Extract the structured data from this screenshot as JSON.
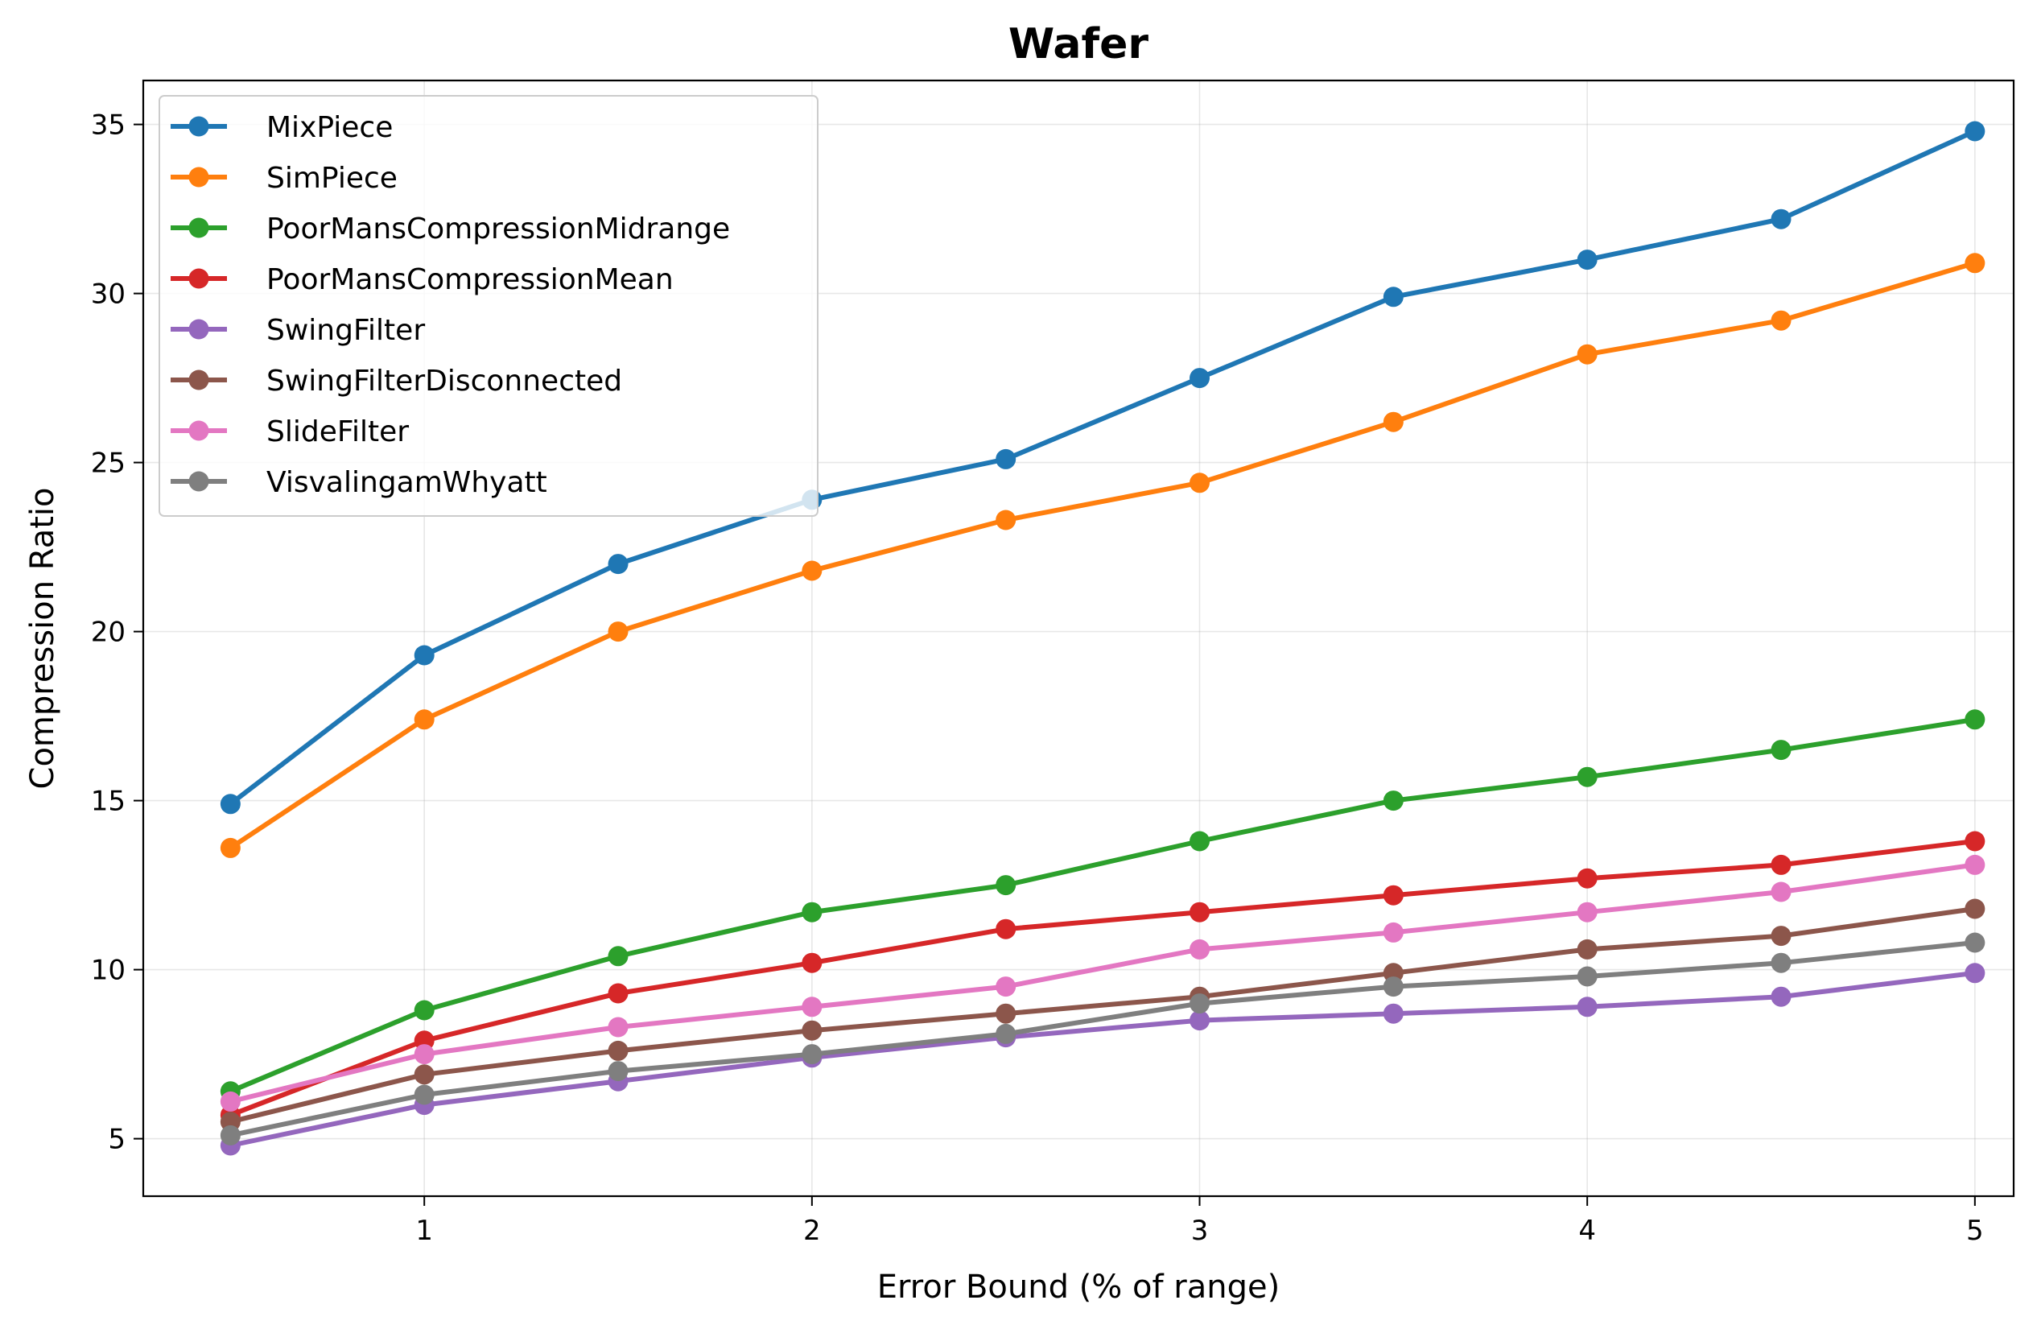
{
  "chart_data": {
    "type": "line",
    "title": "Wafer",
    "xlabel": "Error Bound (% of range)",
    "ylabel": "Compression Ratio",
    "x": [
      0.5,
      1,
      1.5,
      2,
      2.5,
      3,
      3.5,
      4,
      4.5,
      5
    ],
    "xticks": [
      1,
      2,
      3,
      4,
      5
    ],
    "yticks": [
      5,
      10,
      15,
      20,
      25,
      30,
      35
    ],
    "xlim": [
      0.275,
      5.1
    ],
    "ylim": [
      3.3,
      36.3
    ],
    "grid": true,
    "legend": "upper-left",
    "series": [
      {
        "name": "MixPiece",
        "color": "#1f77b4",
        "values": [
          14.9,
          19.3,
          22.0,
          23.9,
          25.1,
          27.5,
          29.9,
          31.0,
          32.2,
          34.8
        ]
      },
      {
        "name": "SimPiece",
        "color": "#ff7f0e",
        "values": [
          13.6,
          17.4,
          20.0,
          21.8,
          23.3,
          24.4,
          26.2,
          28.2,
          29.2,
          30.9
        ]
      },
      {
        "name": "PoorMansCompressionMidrange",
        "color": "#2ca02c",
        "values": [
          6.4,
          8.8,
          10.4,
          11.7,
          12.5,
          13.8,
          15.0,
          15.7,
          16.5,
          17.4
        ]
      },
      {
        "name": "PoorMansCompressionMean",
        "color": "#d62728",
        "values": [
          5.7,
          7.9,
          9.3,
          10.2,
          11.2,
          11.7,
          12.2,
          12.7,
          13.1,
          13.8
        ]
      },
      {
        "name": "SwingFilter",
        "color": "#9467bd",
        "values": [
          4.8,
          6.0,
          6.7,
          7.4,
          8.0,
          8.5,
          8.7,
          8.9,
          9.2,
          9.9
        ]
      },
      {
        "name": "SwingFilterDisconnected",
        "color": "#8c564b",
        "values": [
          5.5,
          6.9,
          7.6,
          8.2,
          8.7,
          9.2,
          9.9,
          10.6,
          11.0,
          11.8
        ]
      },
      {
        "name": "SlideFilter",
        "color": "#e377c2",
        "values": [
          6.1,
          7.5,
          8.3,
          8.9,
          9.5,
          10.6,
          11.1,
          11.7,
          12.3,
          13.1
        ]
      },
      {
        "name": "VisvalingamWhyatt",
        "color": "#7f7f7f",
        "values": [
          5.1,
          6.3,
          7.0,
          7.5,
          8.1,
          9.0,
          9.5,
          9.8,
          10.2,
          10.8
        ]
      }
    ]
  }
}
